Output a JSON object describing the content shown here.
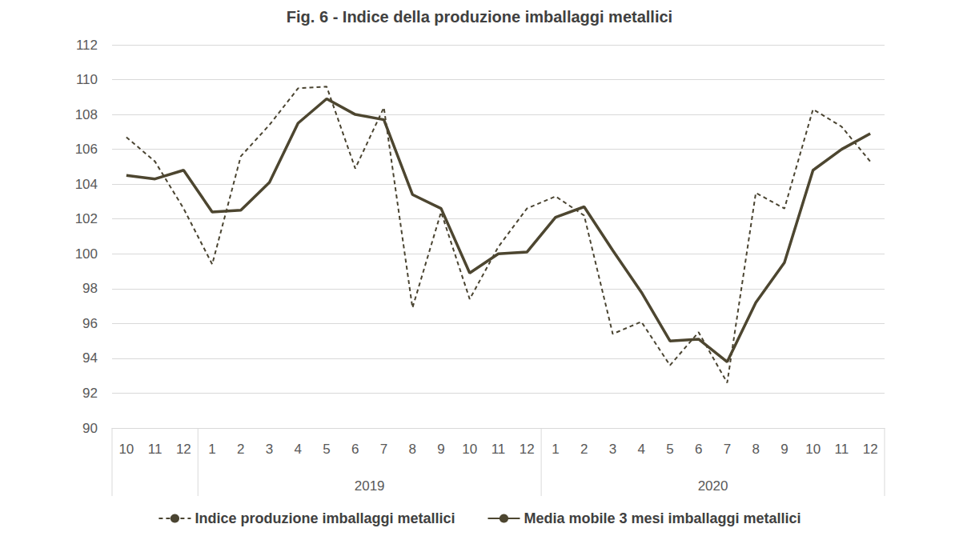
{
  "chart_data": {
    "type": "line",
    "title": "Fig. 6 - Indice della produzione imballaggi metallici",
    "categories": [
      "10",
      "11",
      "12",
      "1",
      "2",
      "3",
      "4",
      "5",
      "6",
      "7",
      "8",
      "9",
      "10",
      "11",
      "12",
      "1",
      "2",
      "3",
      "4",
      "5",
      "6",
      "7",
      "8",
      "9",
      "10",
      "11",
      "12"
    ],
    "years": [
      null,
      null,
      null,
      "2019",
      "2019",
      "2019",
      "2019",
      "2019",
      "2019",
      "2019",
      "2019",
      "2019",
      "2019",
      "2019",
      "2019",
      "2020",
      "2020",
      "2020",
      "2020",
      "2020",
      "2020",
      "2020",
      "2020",
      "2020",
      "2020",
      "2020",
      "2020"
    ],
    "series": [
      {
        "name": "Indice produzione imballaggi metallici",
        "color": "#4a4431",
        "line_style": "dashed",
        "values": [
          106.7,
          105.3,
          102.6,
          99.4,
          105.6,
          107.4,
          109.5,
          109.6,
          104.9,
          108.4,
          96.9,
          102.4,
          97.4,
          100.4,
          102.6,
          103.3,
          102.2,
          95.4,
          96.1,
          93.6,
          95.5,
          92.6,
          103.5,
          102.6,
          108.3,
          107.3,
          105.3
        ]
      },
      {
        "name": "Media mobile 3 mesi imballaggi metallici",
        "color": "#4d4630",
        "line_style": "solid",
        "values": [
          104.5,
          104.3,
          104.8,
          102.4,
          102.5,
          104.1,
          107.5,
          108.9,
          108.0,
          107.7,
          103.4,
          102.6,
          98.9,
          100.0,
          100.1,
          102.1,
          102.7,
          100.2,
          97.8,
          95.0,
          95.1,
          93.8,
          97.2,
          99.5,
          104.8,
          106.0,
          106.9
        ]
      }
    ],
    "ylim": [
      90,
      112
    ],
    "yticks": [
      90,
      92,
      94,
      96,
      98,
      100,
      102,
      104,
      106,
      108,
      110,
      112
    ],
    "grid": true,
    "legend": "bottom"
  }
}
